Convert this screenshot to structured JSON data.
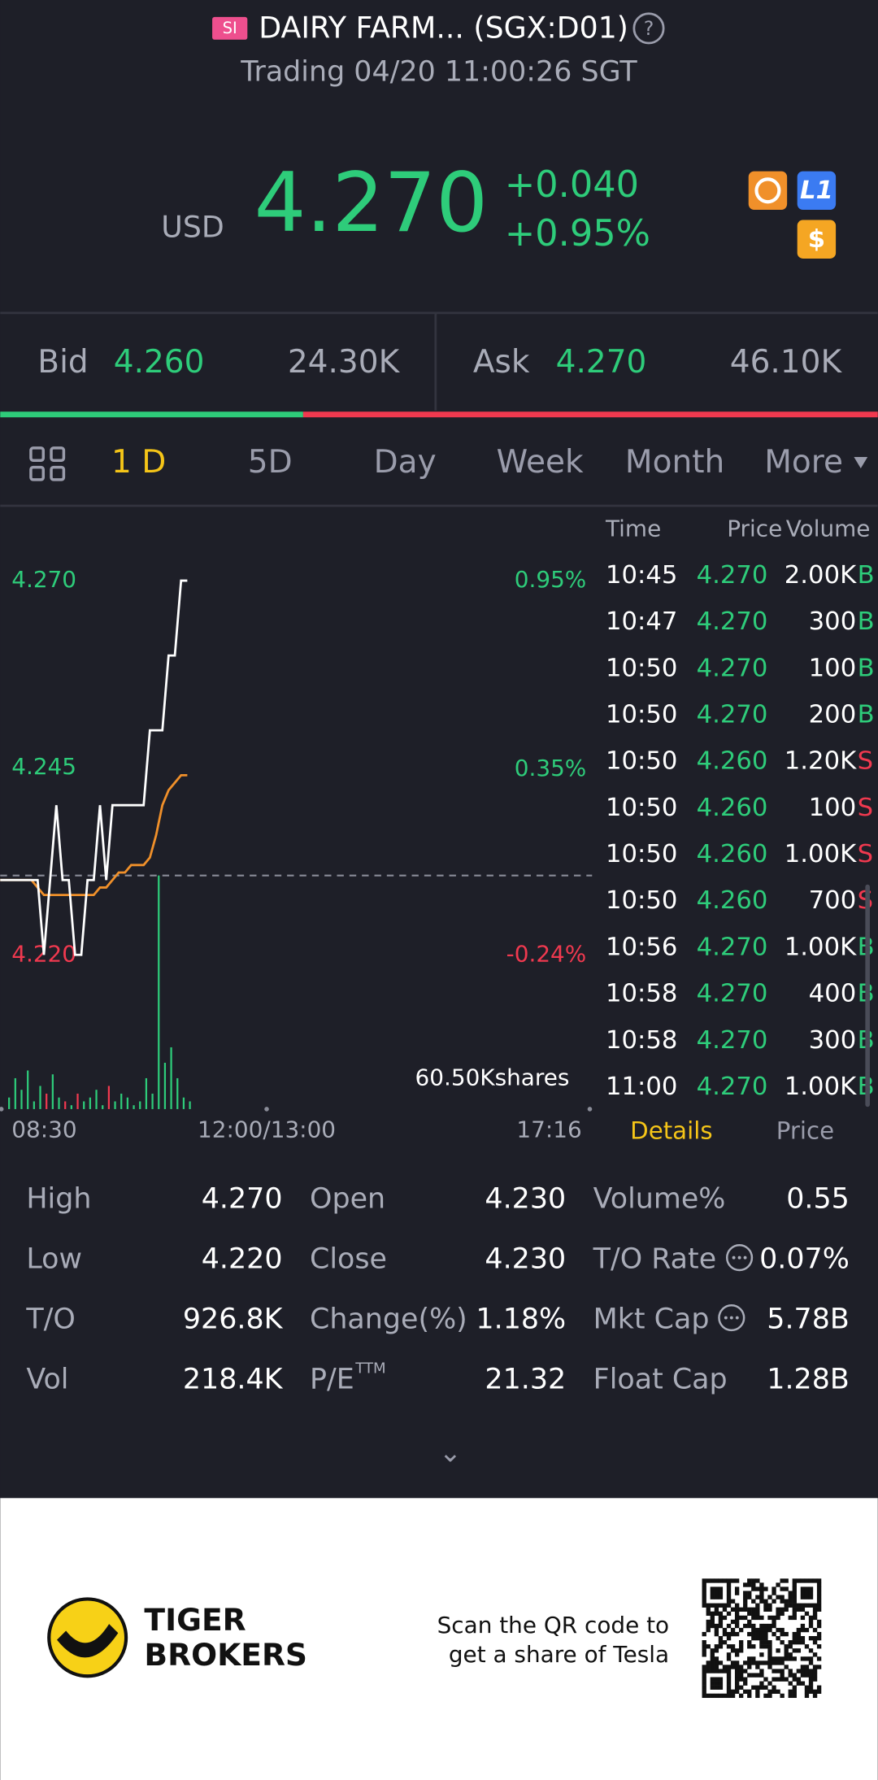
{
  "header": {
    "badge": "SI",
    "title": "DAIRY FARM... (SGX:D01)",
    "status": "Trading 04/20 11:00:26 SGT"
  },
  "quote": {
    "currency": "USD",
    "price": "4.270",
    "change": "+0.040",
    "change_pct": "+0.95%"
  },
  "book": {
    "bid_label": "Bid",
    "bid": "4.260",
    "bid_size": {
      "value": 24300,
      "label": "24.30K"
    },
    "ask_label": "Ask",
    "ask": "4.270",
    "ask_size": {
      "value": 46100,
      "label": "46.10K"
    },
    "bid_color": "#2ecc7a",
    "ask_color": "#f0394f"
  },
  "tabs": [
    "1 D",
    "5D",
    "Day",
    "Week",
    "Month",
    "More"
  ],
  "chart_data": {
    "type": "line",
    "ylim": [
      4.22,
      4.27
    ],
    "yticks": [
      {
        "value": 4.27,
        "label": "4.270"
      },
      {
        "value": 4.245,
        "label": "4.245"
      },
      {
        "value": 4.22,
        "label": "4.220"
      }
    ],
    "y2lim": [
      -0.24,
      0.95
    ],
    "y2ticks": [
      {
        "value": 0.95,
        "label": "0.95%"
      },
      {
        "value": 0.35,
        "label": "0.35%"
      },
      {
        "value": -0.24,
        "label": "-0.24%"
      }
    ],
    "x_labels": [
      "08:30",
      "12:00/13:00",
      "17:16"
    ],
    "prev_close": 4.23,
    "up_color": "#2ecc7a",
    "down_color": "#f0394f",
    "series": [
      {
        "color": "#ffffff",
        "values": [
          4.23,
          4.23,
          4.23,
          4.23,
          4.23,
          4.23,
          4.23,
          4.22,
          4.23,
          4.24,
          4.23,
          4.23,
          4.22,
          4.22,
          4.23,
          4.23,
          4.24,
          4.23,
          4.24,
          4.24,
          4.24,
          4.24,
          4.24,
          4.24,
          4.25,
          4.25,
          4.25,
          4.26,
          4.26,
          4.27,
          4.27
        ]
      },
      {
        "color": "#f0902a",
        "values": [
          4.23,
          4.23,
          4.23,
          4.23,
          4.23,
          4.23,
          4.229,
          4.228,
          4.228,
          4.228,
          4.228,
          4.228,
          4.228,
          4.228,
          4.228,
          4.228,
          4.229,
          4.229,
          4.23,
          4.231,
          4.231,
          4.232,
          4.232,
          4.232,
          4.233,
          4.236,
          4.24,
          4.242,
          4.243,
          4.244,
          4.244
        ]
      }
    ],
    "volume": {
      "ylim": [
        0,
        60500
      ],
      "max_label": {
        "value": 60500,
        "label": "60.50Kshares"
      },
      "values": [
        0,
        3000,
        8000,
        5000,
        10000,
        2000,
        6000,
        4000,
        9000,
        3000,
        2000,
        1000,
        4000,
        2000,
        3000,
        5000,
        1000,
        6000,
        2000,
        4000,
        3000,
        1000,
        2000,
        8000,
        4000,
        60500,
        12000,
        16000,
        8000,
        3000,
        2000
      ]
    }
  },
  "trades": {
    "columns": [
      "Time",
      "Price",
      "Volume"
    ],
    "rows": [
      [
        "10:45",
        "4.270",
        "2.00K",
        "B"
      ],
      [
        "10:47",
        "4.270",
        "300",
        "B"
      ],
      [
        "10:50",
        "4.270",
        "100",
        "B"
      ],
      [
        "10:50",
        "4.270",
        "200",
        "B"
      ],
      [
        "10:50",
        "4.260",
        "1.20K",
        "S"
      ],
      [
        "10:50",
        "4.260",
        "100",
        "S"
      ],
      [
        "10:50",
        "4.260",
        "1.00K",
        "S"
      ],
      [
        "10:50",
        "4.260",
        "700",
        "S"
      ],
      [
        "10:56",
        "4.270",
        "1.00K",
        "B"
      ],
      [
        "10:58",
        "4.270",
        "400",
        "B"
      ],
      [
        "10:58",
        "4.270",
        "300",
        "B"
      ],
      [
        "11:00",
        "4.270",
        "1.00K",
        "B"
      ]
    ]
  },
  "detail_tabs": [
    "Details",
    "Price"
  ],
  "stats": [
    [
      [
        "High",
        "4.270"
      ],
      [
        "Low",
        "4.220"
      ],
      [
        "T/O",
        "926.8K"
      ],
      [
        "Vol",
        "218.4K"
      ]
    ],
    [
      [
        "Open",
        "4.230"
      ],
      [
        "Close",
        "4.230"
      ],
      [
        "Change(%)",
        "1.18%"
      ],
      [
        "P/E",
        "21.32",
        "TTM"
      ]
    ],
    [
      [
        "Volume%",
        "0.55"
      ],
      [
        "T/O Rate",
        "0.07%"
      ],
      [
        "Mkt Cap",
        "5.78B"
      ],
      [
        "Float Cap",
        "1.28B"
      ]
    ]
  ],
  "footer": {
    "brand": [
      "TIGER",
      "BROKERS"
    ],
    "promo": [
      "Scan the QR code to",
      "get a share of Tesla"
    ]
  }
}
